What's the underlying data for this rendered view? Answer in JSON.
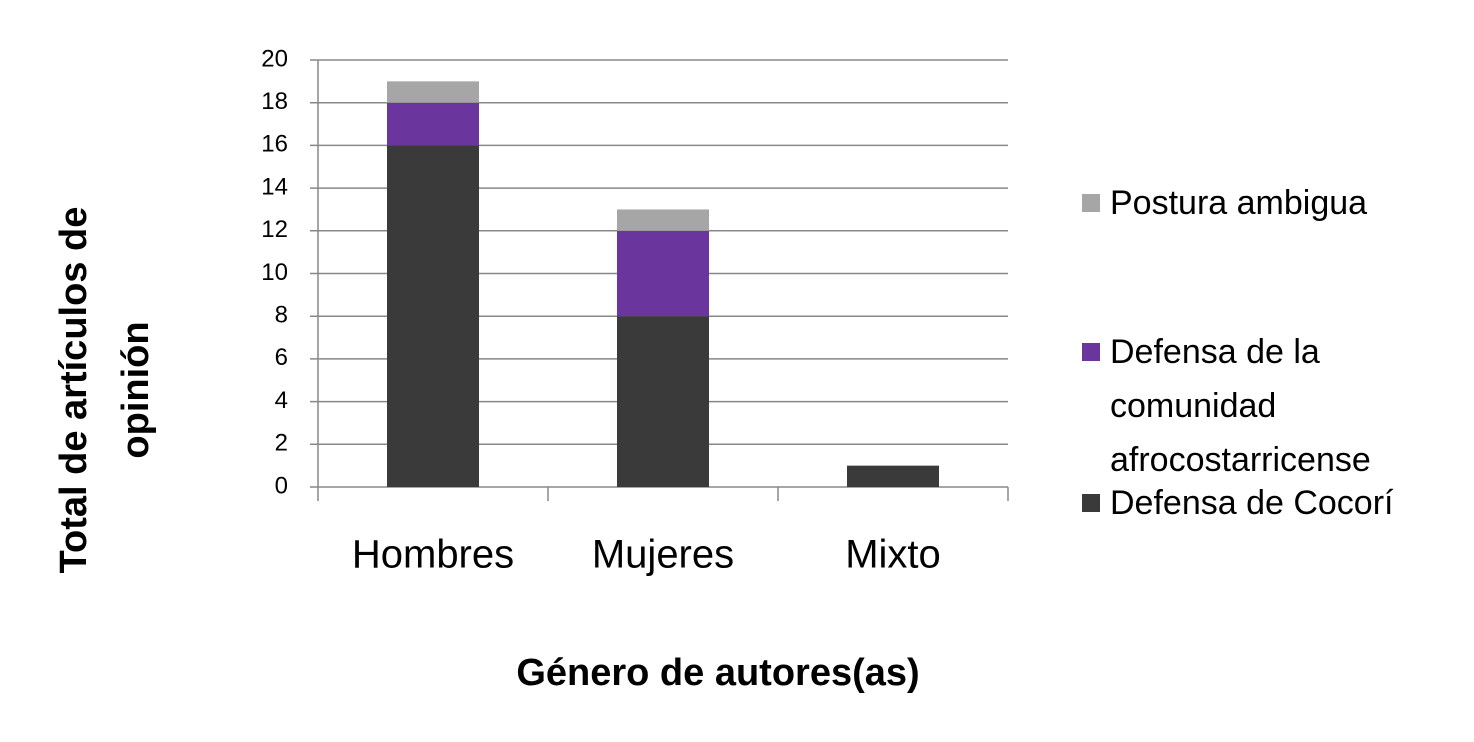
{
  "chart_data": {
    "type": "stacked_bar",
    "x_label": "Género de autores(as)",
    "y_label": "Total de artículos de opinión",
    "categories": [
      "Hombres",
      "Mujeres",
      "Mixto"
    ],
    "series": [
      {
        "name": "Defensa de Cocorí",
        "color": "#3b3a3b",
        "values": [
          16,
          8,
          1
        ]
      },
      {
        "name": "Defensa de la comunidad afrocostarricense",
        "color": "#6a359c",
        "values": [
          2,
          4,
          0
        ]
      },
      {
        "name": "Postura ambigua",
        "color": "#a6a6a6",
        "values": [
          1,
          1,
          0
        ]
      }
    ],
    "ylim": [
      0,
      20
    ],
    "yticks": [
      0,
      2,
      4,
      6,
      8,
      10,
      12,
      14,
      16,
      18,
      20
    ],
    "grid": true,
    "legend": "right"
  }
}
